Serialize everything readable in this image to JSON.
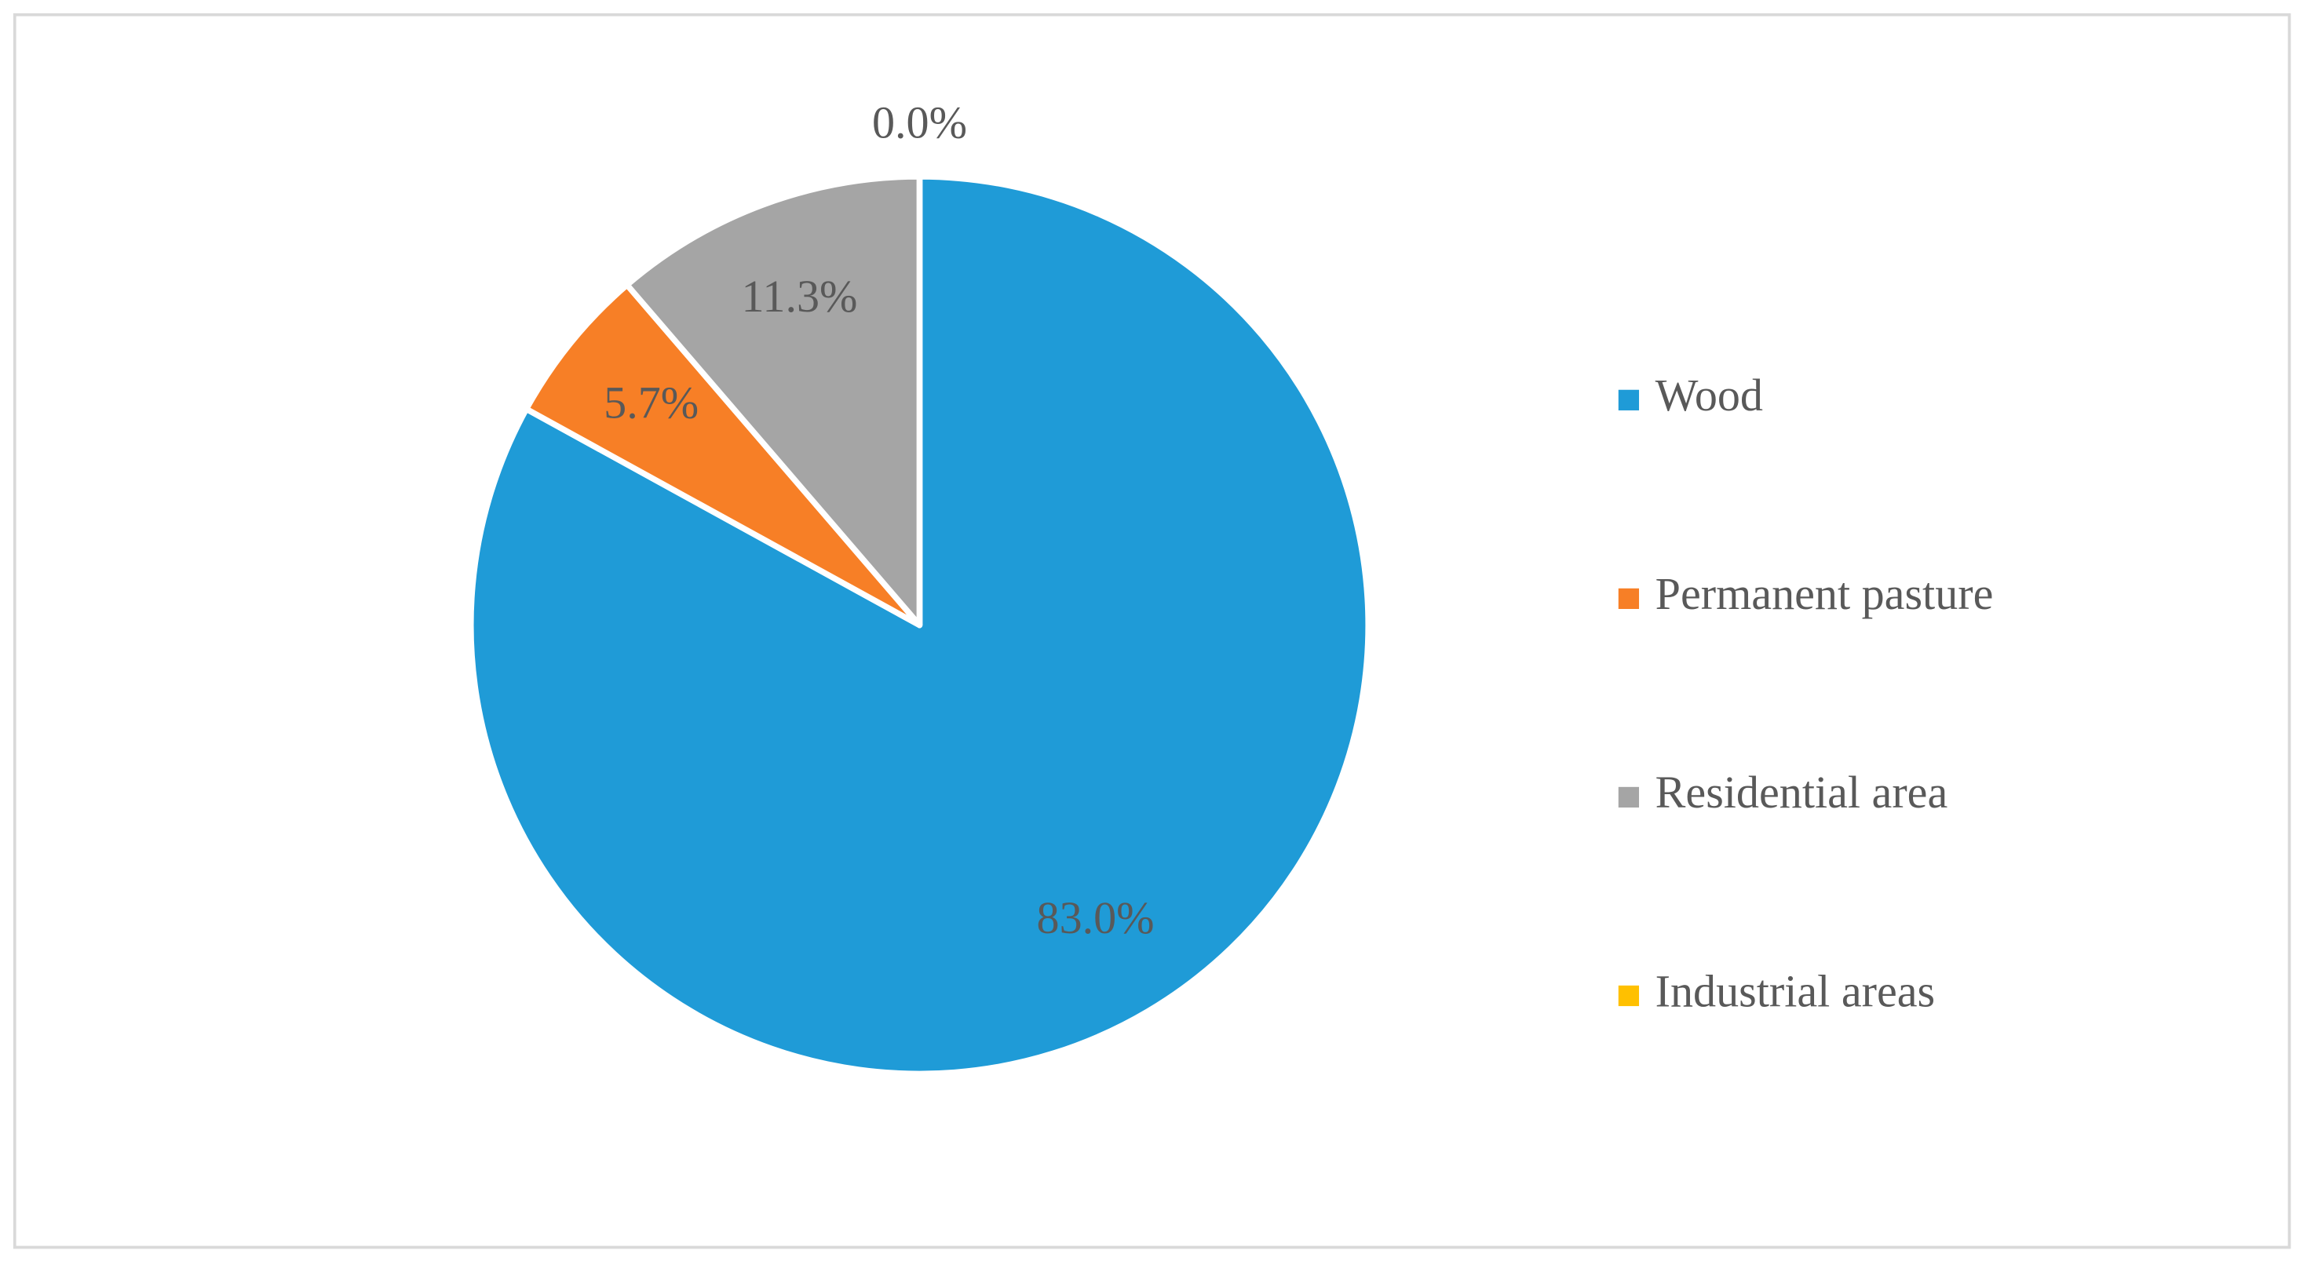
{
  "chart_data": {
    "type": "pie",
    "categories": [
      "Wood",
      "Permanent pasture",
      "Residential area",
      "Industrial areas"
    ],
    "values": [
      83.0,
      5.7,
      11.3,
      0.0
    ],
    "value_labels": [
      "83.0%",
      "5.7%",
      "11.3%",
      "0.0%"
    ],
    "colors": [
      "#1f9bd7",
      "#f77f26",
      "#a5a5a5",
      "#ffc000"
    ],
    "slice_order": [
      0,
      1,
      2,
      3
    ],
    "legend": "right"
  }
}
